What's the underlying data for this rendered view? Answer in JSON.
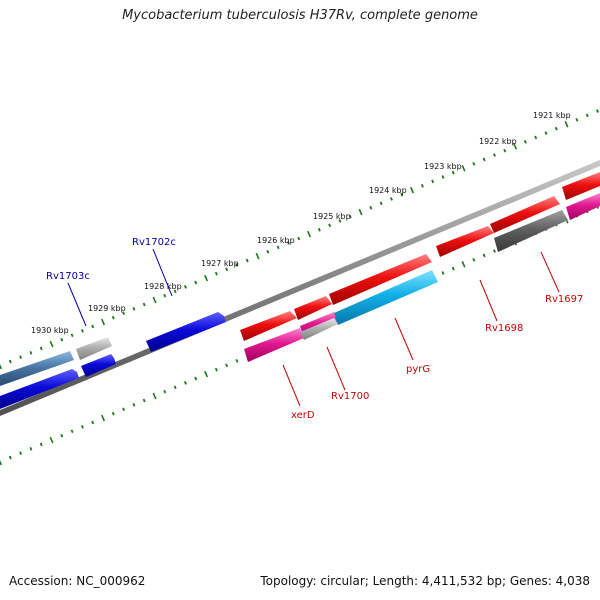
{
  "title": "Mycobacterium tuberculosis H37Rv, complete genome",
  "footer": {
    "accession": "Accession: NC_000962",
    "topology": "Topology: circular; Length: 4,411,532 bp; Genes: 4,038"
  },
  "ruler": {
    "tick_labels": [
      "1921 kbp",
      "1922 kbp",
      "1923 kbp",
      "1924 kbp",
      "1925 kbp",
      "1926 kbp",
      "1927 kbp",
      "1928 kbp",
      "1929 kbp",
      "1930 kbp"
    ]
  },
  "gene_labels": [
    {
      "text": "Rv1703c",
      "strand": "reverse"
    },
    {
      "text": "Rv1702c",
      "strand": "reverse"
    },
    {
      "text": "xerD",
      "strand": "forward"
    },
    {
      "text": "Rv1700",
      "strand": "forward"
    },
    {
      "text": "pyrG",
      "strand": "forward"
    },
    {
      "text": "Rv1698",
      "strand": "forward"
    },
    {
      "text": "Rv1697",
      "strand": "forward"
    }
  ],
  "colors": {
    "forward_label": "#cc0000",
    "reverse_label": "#0000aa",
    "ruler": "#1a7a1a",
    "backbone": "#808080",
    "red_gene": "#e01010",
    "magenta_gene": "#e01890",
    "cyan_gene": "#10b0e8",
    "blue_gene": "#0a0ad0",
    "steel_gene": "#4a78a8",
    "gray_gene": "#a8a8a8",
    "dark_gray_gene": "#606060"
  }
}
